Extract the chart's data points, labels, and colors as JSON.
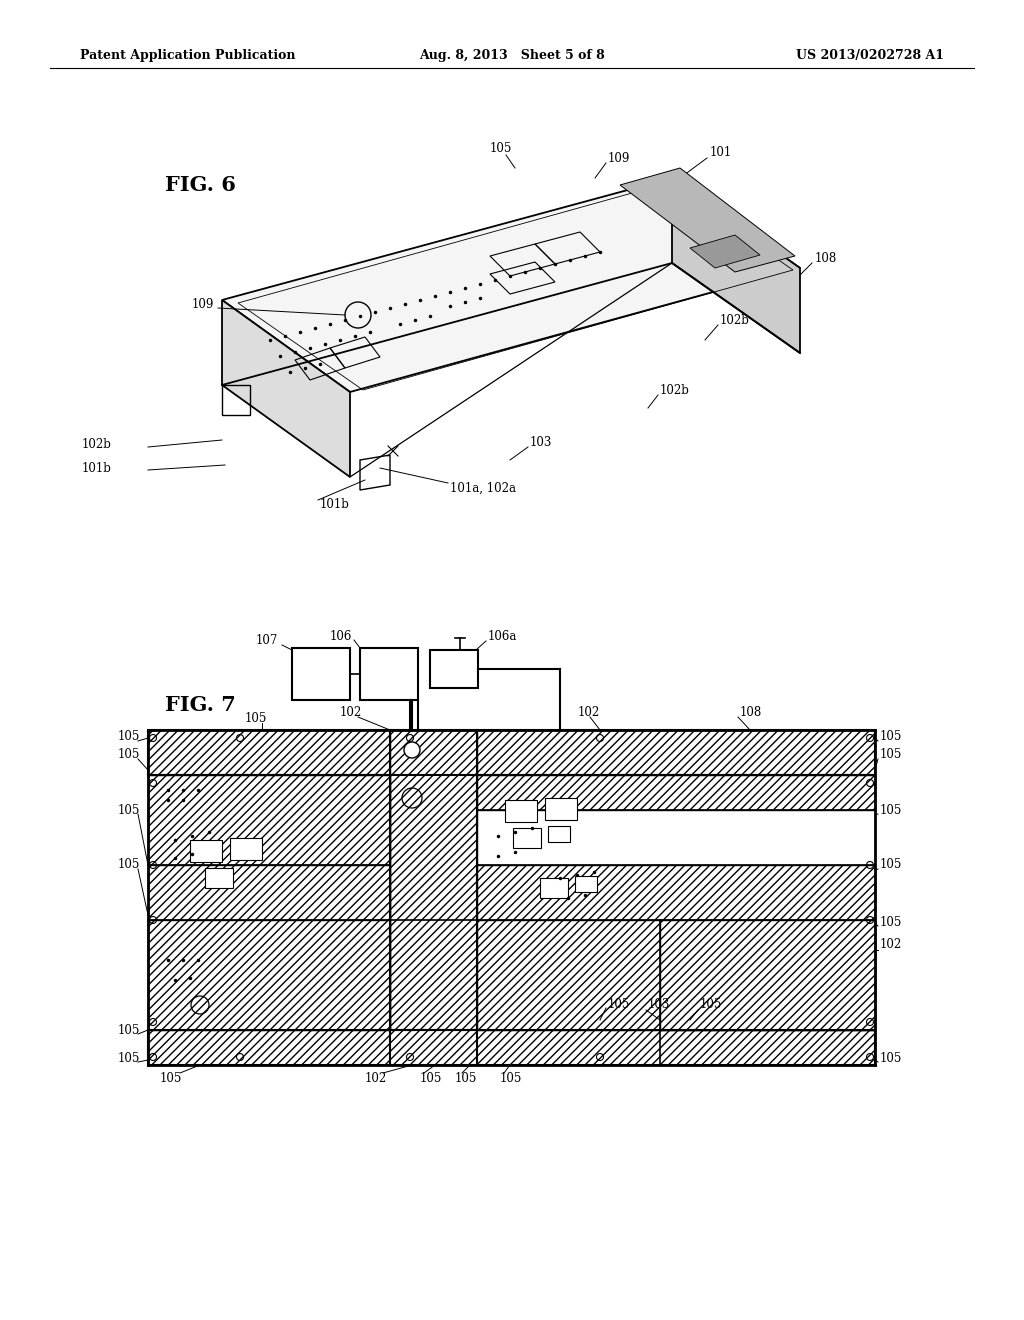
{
  "bg_color": "#ffffff",
  "header_left": "Patent Application Publication",
  "header_center": "Aug. 8, 2013   Sheet 5 of 8",
  "header_right": "US 2013/0202728 A1",
  "fig6_label": "FIG. 6",
  "fig7_label": "FIG. 7",
  "line_color": "#000000",
  "font_size_header": 9,
  "font_size_label": 15
}
